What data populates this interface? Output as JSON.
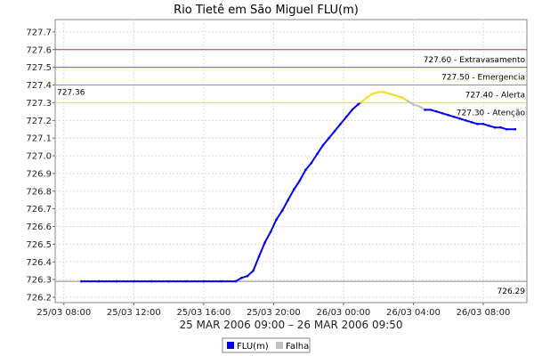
{
  "chart_data": {
    "type": "line",
    "title": "Rio Tietê em São Miguel FLU(m)",
    "xlabel": "25 MAR 2006 09:00 – 26 MAR 2006 09:50",
    "ylabel": "",
    "x_range": [
      "2006-03-25 07:30",
      "2006-03-26 10:30"
    ],
    "ylim": [
      726.17,
      727.77
    ],
    "y_ticks": [
      "726.2",
      "726.3",
      "726.4",
      "726.5",
      "726.6",
      "726.7",
      "726.8",
      "726.9",
      "727.0",
      "727.1",
      "727.2",
      "727.3",
      "727.4",
      "727.5",
      "727.6",
      "727.7"
    ],
    "x_ticks": [
      {
        "t": "2006-03-25 08:00",
        "label": "25/03 08:00"
      },
      {
        "t": "2006-03-25 12:00",
        "label": "25/03 12:00"
      },
      {
        "t": "2006-03-25 16:00",
        "label": "25/03 16:00"
      },
      {
        "t": "2006-03-25 20:00",
        "label": "25/03 20:00"
      },
      {
        "t": "2006-03-26 00:00",
        "label": "26/03 00:00"
      },
      {
        "t": "2006-03-26 04:00",
        "label": "26/03 04:00"
      },
      {
        "t": "2006-03-26 08:00",
        "label": "26/03 08:00"
      }
    ],
    "grid": true,
    "reference_lines": [
      {
        "value": 727.6,
        "label": "727.60 - Extravasamento",
        "color": "#cc3333"
      },
      {
        "value": 727.5,
        "label": "727.50 - Emergencia",
        "color": "#bb33bb"
      },
      {
        "value": 727.4,
        "label": "727.40 - Alerta",
        "color": "#b8a000"
      },
      {
        "value": 727.3,
        "label": "727.30 - Atenção",
        "color": "#eeee00"
      },
      {
        "value": 726.29,
        "label": "726.29",
        "color": "#888888"
      }
    ],
    "max_marker": {
      "value": 727.36,
      "label": "727.36"
    },
    "series": [
      {
        "name": "FLU(m)",
        "color": "#0000ee",
        "segments": [
          {
            "color": "#0000ee",
            "points": [
              [
                "2006-03-25 09:00",
                726.29
              ],
              [
                "2006-03-25 10:00",
                726.29
              ],
              [
                "2006-03-25 11:00",
                726.29
              ],
              [
                "2006-03-25 12:00",
                726.29
              ],
              [
                "2006-03-25 13:00",
                726.29
              ],
              [
                "2006-03-25 14:00",
                726.29
              ],
              [
                "2006-03-25 15:00",
                726.29
              ],
              [
                "2006-03-25 16:00",
                726.29
              ],
              [
                "2006-03-25 17:00",
                726.29
              ],
              [
                "2006-03-25 17:50",
                726.29
              ],
              [
                "2006-03-25 18:10",
                726.31
              ],
              [
                "2006-03-25 18:30",
                726.32
              ],
              [
                "2006-03-25 18:50",
                726.35
              ],
              [
                "2006-03-25 19:10",
                726.43
              ],
              [
                "2006-03-25 19:30",
                726.51
              ],
              [
                "2006-03-25 19:50",
                726.57
              ],
              [
                "2006-03-25 20:10",
                726.64
              ],
              [
                "2006-03-25 20:30",
                726.69
              ],
              [
                "2006-03-25 20:50",
                726.75
              ],
              [
                "2006-03-25 21:10",
                726.81
              ],
              [
                "2006-03-25 21:30",
                726.86
              ],
              [
                "2006-03-25 21:50",
                726.92
              ],
              [
                "2006-03-25 22:10",
                726.96
              ],
              [
                "2006-03-25 22:30",
                727.01
              ],
              [
                "2006-03-25 22:50",
                727.06
              ],
              [
                "2006-03-25 23:10",
                727.1
              ],
              [
                "2006-03-25 23:30",
                727.14
              ],
              [
                "2006-03-25 23:50",
                727.18
              ],
              [
                "2006-03-26 00:10",
                727.22
              ],
              [
                "2006-03-26 00:30",
                727.26
              ],
              [
                "2006-03-26 00:50",
                727.29
              ],
              [
                "2006-03-26 01:00",
                727.3
              ]
            ]
          },
          {
            "color": "#f0e020",
            "points": [
              [
                "2006-03-26 01:00",
                727.3
              ],
              [
                "2006-03-26 01:20",
                727.33
              ],
              [
                "2006-03-26 01:40",
                727.35
              ],
              [
                "2006-03-26 02:00",
                727.36
              ],
              [
                "2006-03-26 02:20",
                727.36
              ],
              [
                "2006-03-26 02:40",
                727.35
              ],
              [
                "2006-03-26 03:00",
                727.34
              ],
              [
                "2006-03-26 03:20",
                727.33
              ],
              [
                "2006-03-26 03:40",
                727.31
              ]
            ]
          },
          {
            "color": "#c0c0c0",
            "points": [
              [
                "2006-03-26 03:40",
                727.31
              ],
              [
                "2006-03-26 04:00",
                727.29
              ],
              [
                "2006-03-26 04:20",
                727.28
              ],
              [
                "2006-03-26 04:40",
                727.26
              ]
            ]
          },
          {
            "color": "#0000ee",
            "points": [
              [
                "2006-03-26 04:40",
                727.26
              ],
              [
                "2006-03-26 05:00",
                727.26
              ],
              [
                "2006-03-26 05:20",
                727.25
              ],
              [
                "2006-03-26 05:40",
                727.24
              ],
              [
                "2006-03-26 06:00",
                727.23
              ],
              [
                "2006-03-26 06:20",
                727.22
              ],
              [
                "2006-03-26 06:40",
                727.21
              ],
              [
                "2006-03-26 07:00",
                727.2
              ],
              [
                "2006-03-26 07:20",
                727.19
              ],
              [
                "2006-03-26 07:40",
                727.18
              ],
              [
                "2006-03-26 08:00",
                727.18
              ],
              [
                "2006-03-26 08:20",
                727.17
              ],
              [
                "2006-03-26 08:40",
                727.16
              ],
              [
                "2006-03-26 09:00",
                727.16
              ],
              [
                "2006-03-26 09:20",
                727.15
              ],
              [
                "2006-03-26 09:50",
                727.15
              ]
            ]
          }
        ]
      },
      {
        "name": "Falha",
        "color": "#c0c0c0",
        "segments": []
      }
    ],
    "legend": {
      "placement": "bottom",
      "items": [
        {
          "label": "FLU(m)",
          "color": "#0000ee"
        },
        {
          "label": "Falha",
          "color": "#c0c0c0"
        }
      ]
    }
  }
}
